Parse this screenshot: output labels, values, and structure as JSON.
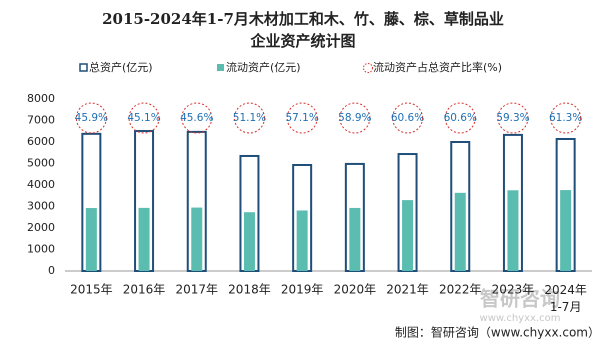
{
  "chart_data": {
    "type": "bar",
    "title_lines": [
      "2015-2024年1-7月木材加工和木、竹、藤、棕、草制品业",
      "企业资产统计图"
    ],
    "categories": [
      "2015年",
      "2016年",
      "2017年",
      "2018年",
      "2019年",
      "2020年",
      "2021年",
      "2022年",
      "2023年",
      "2024年\n1-7月"
    ],
    "series": [
      {
        "name": "总资产(亿元)",
        "color": "#1f4e79",
        "values": [
          6380,
          6510,
          6470,
          5350,
          4930,
          4980,
          5440,
          6000,
          6330,
          6140
        ]
      },
      {
        "name": "流动资产(亿元)",
        "color": "#5bbcb0",
        "values": [
          2928,
          2936,
          2950,
          2734,
          2815,
          2933,
          3297,
          3636,
          3754,
          3764
        ]
      },
      {
        "name": "流动资产占总资产比率(%)",
        "color": "#d9302b",
        "values": [
          45.9,
          45.1,
          45.6,
          51.1,
          57.1,
          58.9,
          60.6,
          60.6,
          59.3,
          61.3
        ],
        "value_labels": [
          "45.9%",
          "45.1%",
          "45.6%",
          "51.1%",
          "57.1%",
          "58.9%",
          "60.6%",
          "60.6%",
          "59.3%",
          "61.3%"
        ]
      }
    ],
    "ylim": [
      0,
      8000
    ],
    "yticks": [
      0,
      1000,
      2000,
      3000,
      4000,
      5000,
      6000,
      7000,
      8000
    ],
    "source": "制图：智研咨询（www.chyxx.com）",
    "watermark": [
      "智研咨询",
      "www.chyxx.com"
    ]
  }
}
